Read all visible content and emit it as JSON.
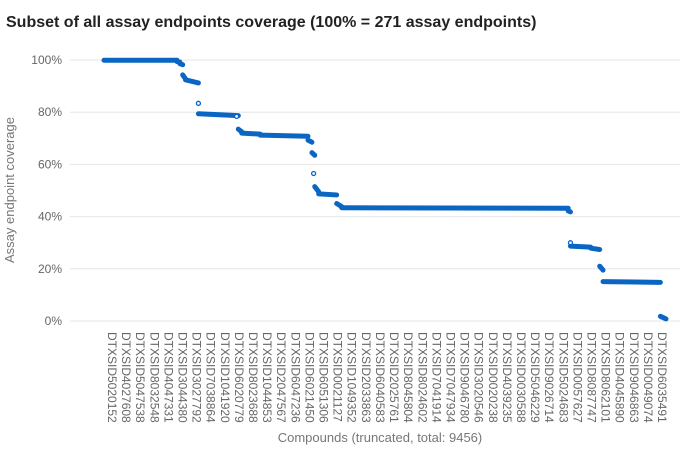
{
  "chart_data": {
    "type": "scatter",
    "title": "Subset of all assay endpoints coverage (100% = 271 assay endpoints)",
    "xlabel": "Compounds (truncated, total: 9456)",
    "ylabel": "Assay endpoint coverage",
    "ylim": [
      0,
      100
    ],
    "y_ticks": [
      "0%",
      "20%",
      "40%",
      "60%",
      "80%",
      "100%"
    ],
    "y_tick_values": [
      0,
      20,
      40,
      60,
      80,
      100
    ],
    "grid": "horizontal",
    "legend": "none",
    "marker_color": "#0a66c2",
    "categories": [
      "DTXSID5020152",
      "DTXSID4027608",
      "DTXSID5047538",
      "DTXSID8032548",
      "DTXSID4047331",
      "DTXSID3044380",
      "DTXSID3027792",
      "DTXSID7038864",
      "DTXSID1041920",
      "DTXSID6020779",
      "DTXSID8023688",
      "DTXSID1044853",
      "DTXSID2047567",
      "DTXSID6047236",
      "DTXSID6021450",
      "DTXSID6051306",
      "DTXSID0021127",
      "DTXSID1049352",
      "DTXSID2033863",
      "DTXSID6040583",
      "DTXSID2025761",
      "DTXSID8045804",
      "DTXSID8024602",
      "DTXSID7041914",
      "DTXSID7047934",
      "DTXSID9046780",
      "DTXSID3020546",
      "DTXSID0020238",
      "DTXSID4039235",
      "DTXSID0030588",
      "DTXSID5046229",
      "DTXSID9026714",
      "DTXSID5024683",
      "DTXSID0057627",
      "DTXSID8087747",
      "DTXSID8062101",
      "DTXSID4045890",
      "DTXSID9046863",
      "DTXSID0049074",
      "DTXSID6035491"
    ],
    "segments": [
      {
        "x_start": 0.0,
        "x_end": 0.13,
        "y_start": 99.9,
        "y_end": 99.9
      },
      {
        "x_start": 0.13,
        "x_end": 0.135,
        "y_start": 99.4,
        "y_end": 99.2
      },
      {
        "x_start": 0.135,
        "x_end": 0.14,
        "y_start": 98.6,
        "y_end": 98.2
      },
      {
        "x_start": 0.14,
        "x_end": 0.145,
        "y_start": 94.3,
        "y_end": 92.8
      },
      {
        "x_start": 0.145,
        "x_end": 0.168,
        "y_start": 92.4,
        "y_end": 91.2
      },
      {
        "x_start": 0.168,
        "x_end": 0.239,
        "y_start": 79.4,
        "y_end": 78.7
      },
      {
        "x_start": 0.239,
        "x_end": 0.245,
        "y_start": 73.5,
        "y_end": 72.5
      },
      {
        "x_start": 0.245,
        "x_end": 0.278,
        "y_start": 72.0,
        "y_end": 71.6
      },
      {
        "x_start": 0.278,
        "x_end": 0.363,
        "y_start": 71.2,
        "y_end": 70.8
      },
      {
        "x_start": 0.363,
        "x_end": 0.37,
        "y_start": 69.3,
        "y_end": 68.5
      },
      {
        "x_start": 0.37,
        "x_end": 0.375,
        "y_start": 64.5,
        "y_end": 63.5
      },
      {
        "x_start": 0.375,
        "x_end": 0.382,
        "y_start": 51.5,
        "y_end": 49.5
      },
      {
        "x_start": 0.382,
        "x_end": 0.414,
        "y_start": 48.7,
        "y_end": 48.3
      },
      {
        "x_start": 0.414,
        "x_end": 0.423,
        "y_start": 45.0,
        "y_end": 43.8
      },
      {
        "x_start": 0.423,
        "x_end": 0.826,
        "y_start": 43.4,
        "y_end": 43.2
      },
      {
        "x_start": 0.826,
        "x_end": 0.83,
        "y_start": 42.2,
        "y_end": 41.8
      },
      {
        "x_start": 0.83,
        "x_end": 0.866,
        "y_start": 28.7,
        "y_end": 28.3
      },
      {
        "x_start": 0.866,
        "x_end": 0.882,
        "y_start": 27.9,
        "y_end": 27.4
      },
      {
        "x_start": 0.882,
        "x_end": 0.888,
        "y_start": 21.0,
        "y_end": 19.5
      },
      {
        "x_start": 0.888,
        "x_end": 0.99,
        "y_start": 15.1,
        "y_end": 14.8
      },
      {
        "x_start": 0.99,
        "x_end": 1.0,
        "y_start": 1.8,
        "y_end": 0.8
      }
    ],
    "outliers": [
      {
        "x": 0.168,
        "y": 83.4
      },
      {
        "x": 0.236,
        "y": 78.4
      },
      {
        "x": 0.373,
        "y": 56.5
      },
      {
        "x": 0.83,
        "y": 30.0
      }
    ]
  }
}
